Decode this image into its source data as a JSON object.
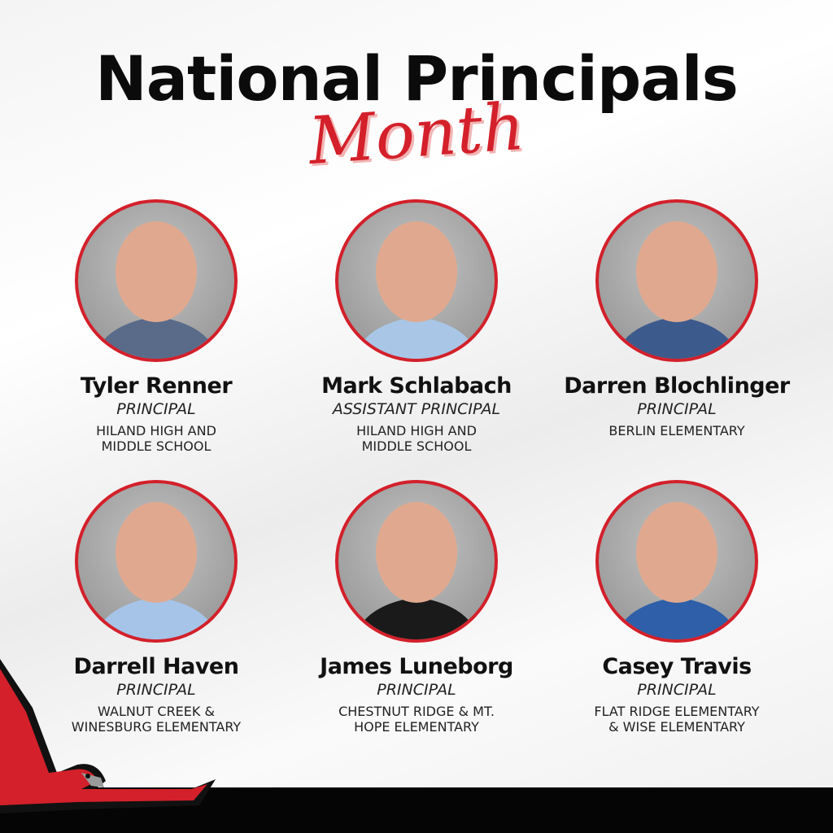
{
  "header": {
    "title": "National Principals",
    "subtitle": "Month"
  },
  "colors": {
    "accent": "#d3202a",
    "bar": "#050505"
  },
  "principals": [
    {
      "name": "Tyler Renner",
      "role": "PRINCIPAL",
      "school": "HILAND HIGH AND\nMIDDLE SCHOOL",
      "shirt": "#5a6b8a"
    },
    {
      "name": "Mark Schlabach",
      "role": "ASSISTANT PRINCIPAL",
      "school": "HILAND HIGH AND\nMIDDLE SCHOOL",
      "shirt": "#a9c6e6"
    },
    {
      "name": "Darren Blochlinger",
      "role": "PRINCIPAL",
      "school": "BERLIN ELEMENTARY",
      "shirt": "#3d5a8c"
    },
    {
      "name": "Darrell Haven",
      "role": "PRINCIPAL",
      "school": "WALNUT CREEK &\nWINESBURG ELEMENTARY",
      "shirt": "#a5c4e8"
    },
    {
      "name": "James Luneborg",
      "role": "PRINCIPAL",
      "school": "CHESTNUT RIDGE & MT.\nHOPE ELEMENTARY",
      "shirt": "#1a1a1a"
    },
    {
      "name": "Casey Travis",
      "role": "PRINCIPAL",
      "school": "FLAT RIDGE ELEMENTARY\n& WISE ELEMENTARY",
      "shirt": "#2e5fa8"
    }
  ],
  "mascot": "red-hawk-mascot"
}
